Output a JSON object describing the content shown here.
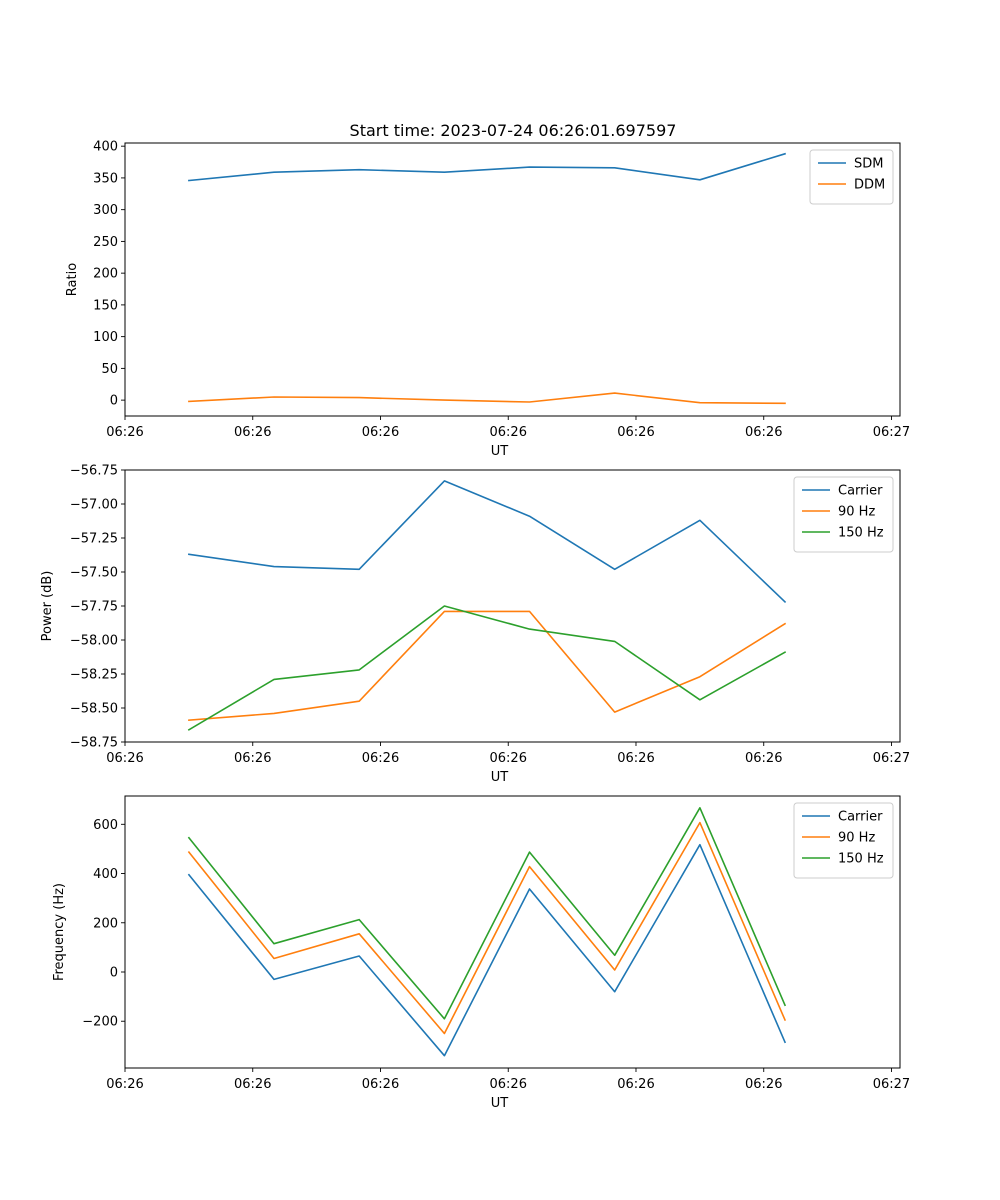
{
  "figure": {
    "suptitle": "Start time: 2023-07-24 06:26:01.697597"
  },
  "colors": {
    "blue": "#1f77b4",
    "orange": "#ff7f0e",
    "green": "#2ca02c",
    "axis": "#000000",
    "legend_border": "#cccccc"
  },
  "chart_data": [
    {
      "type": "line",
      "title": "",
      "xlabel": "UT",
      "ylabel": "Ratio",
      "xlim": [
        -0.75,
        8.35
      ],
      "ylim": [
        -25,
        405
      ],
      "x": [
        0,
        1,
        2,
        3,
        4,
        5,
        6,
        7
      ],
      "x_ticks": [
        -0.75,
        0.75,
        2.25,
        3.75,
        5.25,
        6.75,
        8.25
      ],
      "x_tick_labels": [
        "06:26",
        "06:26",
        "06:26",
        "06:26",
        "06:26",
        "06:26",
        "06:27"
      ],
      "y_ticks": [
        0,
        50,
        100,
        150,
        200,
        250,
        300,
        350,
        400
      ],
      "y_tick_labels": [
        "0",
        "50",
        "100",
        "150",
        "200",
        "250",
        "300",
        "350",
        "400"
      ],
      "legend": "top-right",
      "series": [
        {
          "name": "SDM",
          "color": "#1f77b4",
          "values": [
            346,
            359,
            363,
            359,
            367,
            366,
            347,
            388
          ]
        },
        {
          "name": "DDM",
          "color": "#ff7f0e",
          "values": [
            -2,
            5,
            4,
            0,
            -3,
            11,
            -4,
            -5
          ]
        }
      ]
    },
    {
      "type": "line",
      "title": "",
      "xlabel": "UT",
      "ylabel": "Power (dB)",
      "xlim": [
        -0.75,
        8.35
      ],
      "ylim": [
        -58.75,
        -56.75
      ],
      "x": [
        0,
        1,
        2,
        3,
        4,
        5,
        6,
        7
      ],
      "x_ticks": [
        -0.75,
        0.75,
        2.25,
        3.75,
        5.25,
        6.75,
        8.25
      ],
      "x_tick_labels": [
        "06:26",
        "06:26",
        "06:26",
        "06:26",
        "06:26",
        "06:26",
        "06:27"
      ],
      "y_ticks": [
        -58.75,
        -58.5,
        -58.25,
        -58.0,
        -57.75,
        -57.5,
        -57.25,
        -57.0,
        -56.75
      ],
      "y_tick_labels": [
        "−58.75",
        "−58.50",
        "−58.25",
        "−58.00",
        "−57.75",
        "−57.50",
        "−57.25",
        "−57.00",
        "−56.75"
      ],
      "legend": "top-right",
      "series": [
        {
          "name": "Carrier",
          "color": "#1f77b4",
          "values": [
            -57.37,
            -57.46,
            -57.48,
            -56.83,
            -57.09,
            -57.48,
            -57.12,
            -57.72
          ]
        },
        {
          "name": "90 Hz",
          "color": "#ff7f0e",
          "values": [
            -58.59,
            -58.54,
            -58.45,
            -57.79,
            -57.79,
            -58.53,
            -58.27,
            -57.88
          ]
        },
        {
          "name": "150 Hz",
          "color": "#2ca02c",
          "values": [
            -58.66,
            -58.29,
            -58.22,
            -57.75,
            -57.92,
            -58.01,
            -58.44,
            -58.09
          ]
        }
      ]
    },
    {
      "type": "line",
      "title": "",
      "xlabel": "UT",
      "ylabel": "Frequency (Hz)",
      "xlim": [
        -0.75,
        8.35
      ],
      "ylim": [
        -390,
        715
      ],
      "x": [
        0,
        1,
        2,
        3,
        4,
        5,
        6,
        7
      ],
      "x_ticks": [
        -0.75,
        0.75,
        2.25,
        3.75,
        5.25,
        6.75,
        8.25
      ],
      "x_tick_labels": [
        "06:26",
        "06:26",
        "06:26",
        "06:26",
        "06:26",
        "06:26",
        "06:27"
      ],
      "y_ticks": [
        -200,
        0,
        200,
        400,
        600
      ],
      "y_tick_labels": [
        "−200",
        "0",
        "200",
        "400",
        "600"
      ],
      "legend": "top-right",
      "series": [
        {
          "name": "Carrier",
          "color": "#1f77b4",
          "values": [
            395,
            -30,
            65,
            -340,
            337,
            -80,
            517,
            -285
          ]
        },
        {
          "name": "90 Hz",
          "color": "#ff7f0e",
          "values": [
            487,
            55,
            155,
            -250,
            428,
            8,
            607,
            -195
          ]
        },
        {
          "name": "150 Hz",
          "color": "#2ca02c",
          "values": [
            545,
            115,
            213,
            -190,
            487,
            68,
            667,
            -135
          ]
        }
      ]
    }
  ]
}
